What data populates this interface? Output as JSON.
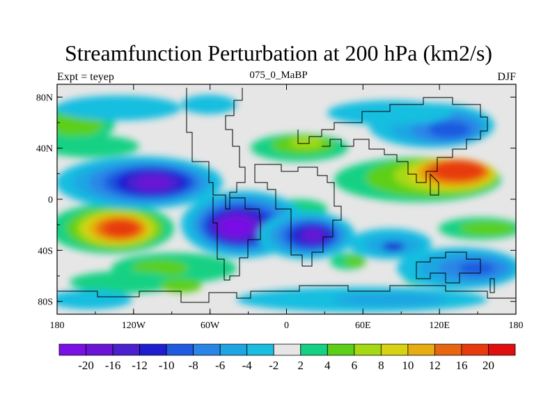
{
  "chart_data": {
    "type": "heatmap",
    "title": "Streamfunction Perturbation at 200 hPa (km2/s)",
    "subtitle": "075_0_MaBP",
    "left_label": "Expt = teyep",
    "right_label": "DJF",
    "x_range": [
      -180,
      180
    ],
    "y_range": [
      -90,
      90
    ],
    "x_ticks": [
      {
        "value": -180,
        "label": "180"
      },
      {
        "value": -120,
        "label": "120W"
      },
      {
        "value": -60,
        "label": "60W"
      },
      {
        "value": 0,
        "label": "0"
      },
      {
        "value": 60,
        "label": "60E"
      },
      {
        "value": 120,
        "label": "120E"
      },
      {
        "value": 180,
        "label": "180"
      }
    ],
    "y_ticks": [
      {
        "value": 80,
        "label": "80N"
      },
      {
        "value": 40,
        "label": "40N"
      },
      {
        "value": 0,
        "label": "0"
      },
      {
        "value": -40,
        "label": "40S"
      },
      {
        "value": -80,
        "label": "80S"
      }
    ],
    "colorbar": {
      "colors": [
        "#7a10e6",
        "#6a14d6",
        "#4a20cf",
        "#1e1ed0",
        "#1f5ae0",
        "#2a86e6",
        "#1ea6e2",
        "#19bee0",
        "#e6e6e6",
        "#14d184",
        "#5ccf18",
        "#a5d914",
        "#d7d312",
        "#e6ac10",
        "#e8660f",
        "#e83a0f",
        "#e00e0e"
      ],
      "labels": [
        "-20",
        "-16",
        "-12",
        "-10",
        "-8",
        "-6",
        "-4",
        "-2",
        "2",
        "4",
        "6",
        "8",
        "10",
        "12",
        "16",
        "20"
      ]
    },
    "field_extrema": [
      {
        "lon": -128,
        "lat": 12,
        "value": -16,
        "note": "low over eastern Pacific"
      },
      {
        "lon": -45,
        "lat": -22,
        "value": -20,
        "note": "low over South America"
      },
      {
        "lon": 20,
        "lat": -28,
        "value": -16,
        "note": "low over southern Africa"
      },
      {
        "lon": 135,
        "lat": 22,
        "value": 20,
        "note": "high over western Pacific"
      },
      {
        "lon": -132,
        "lat": -25,
        "value": 18,
        "note": "high over South Pacific"
      },
      {
        "lon": 120,
        "lat": 52,
        "value": -10,
        "note": "low over eastern Asia"
      },
      {
        "lon": 150,
        "lat": -52,
        "value": -12,
        "note": "low over Southern Ocean"
      }
    ]
  }
}
